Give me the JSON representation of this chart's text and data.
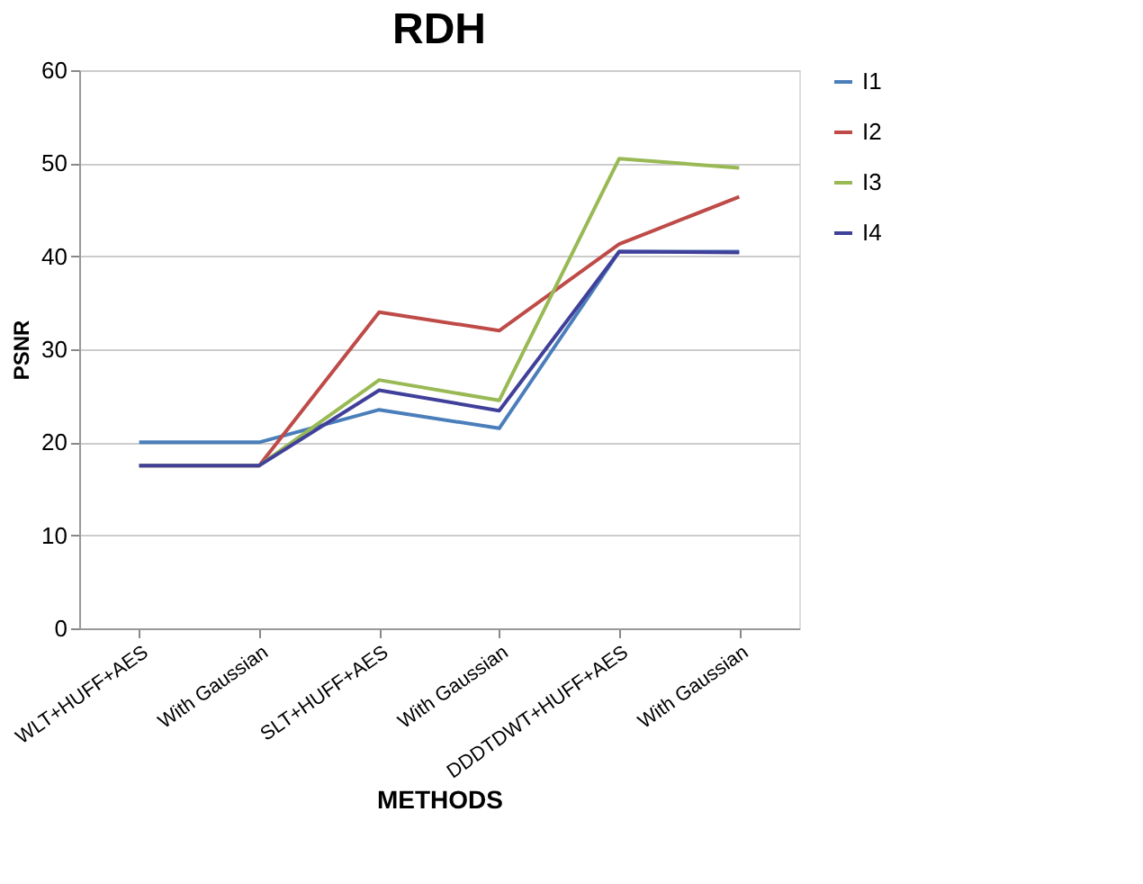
{
  "chart_data": {
    "type": "line",
    "title": "RDH",
    "xlabel": "METHODS",
    "ylabel": "PSNR",
    "categories": [
      "WLT+HUFF+AES",
      "With Gaussian",
      "SLT+HUFF+AES",
      "With Gaussian",
      "DDDTDWT+HUFF+AES",
      "With Gaussian"
    ],
    "series": [
      {
        "name": "I1",
        "color": "#4a7ebb",
        "values": [
          20,
          20,
          23.5,
          21.5,
          40.5,
          40.5
        ]
      },
      {
        "name": "I2",
        "color": "#be4b48",
        "values": [
          17.5,
          17.5,
          34,
          32,
          41.3,
          46.4
        ]
      },
      {
        "name": "I3",
        "color": "#98b954",
        "values": [
          17.5,
          17.5,
          26.7,
          24.5,
          50.5,
          49.5
        ]
      },
      {
        "name": "I4",
        "color": "#40409a",
        "values": [
          17.5,
          17.5,
          25.6,
          23.4,
          40.5,
          40.4
        ]
      }
    ],
    "ylim": [
      0,
      60
    ],
    "yticks": [
      0,
      10,
      20,
      30,
      40,
      50,
      60
    ],
    "grid": "y",
    "legend": "right",
    "marker": "none",
    "line_style": "solid"
  }
}
